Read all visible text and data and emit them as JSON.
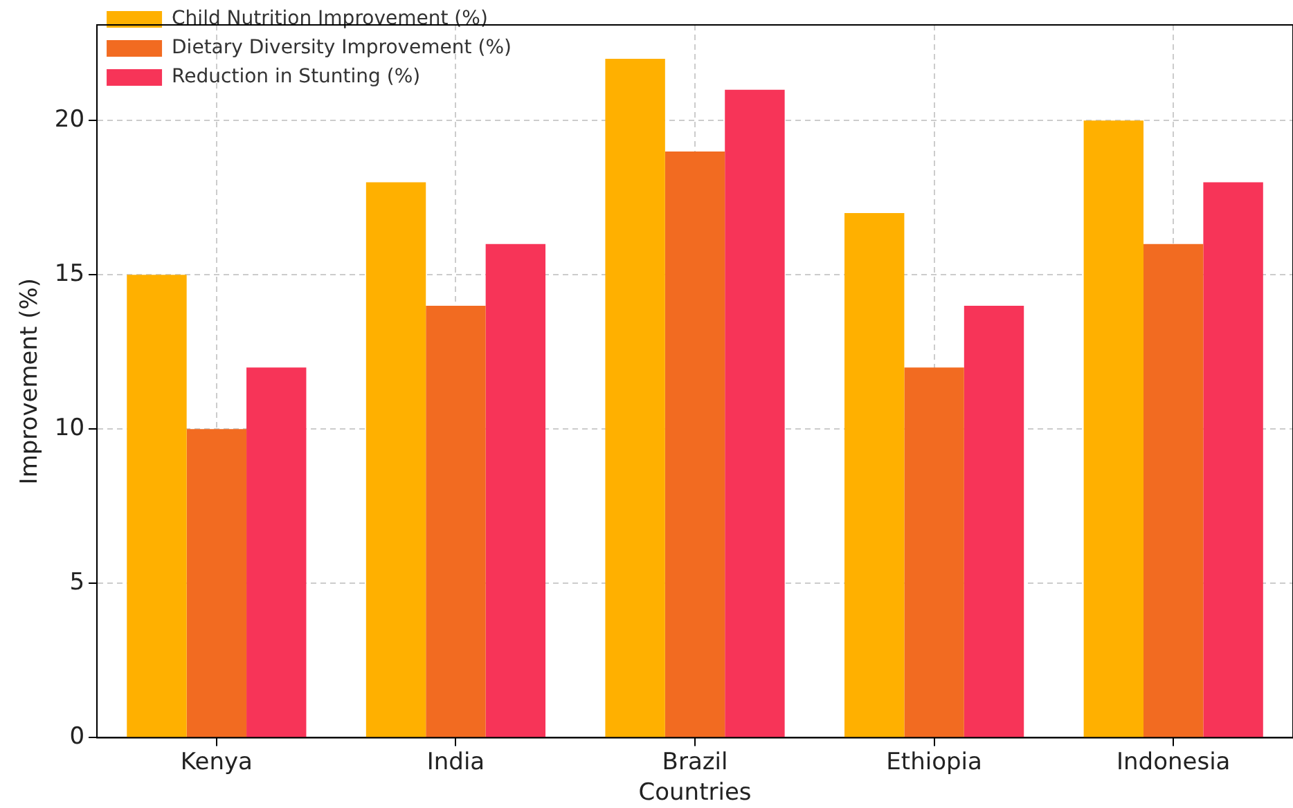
{
  "chart_data": {
    "type": "bar",
    "xlabel": "Countries",
    "ylabel": "Improvement (%)",
    "categories": [
      "Kenya",
      "India",
      "Brazil",
      "Ethiopia",
      "Indonesia"
    ],
    "series": [
      {
        "name": "Child Nutrition Improvement (%)",
        "color": "#ffb000",
        "values": [
          15,
          18,
          22,
          17,
          20
        ]
      },
      {
        "name": "Dietary Diversity Improvement (%)",
        "color": "#f26b21",
        "values": [
          10,
          14,
          19,
          12,
          16
        ]
      },
      {
        "name": "Reduction in Stunting (%)",
        "color": "#f73458",
        "values": [
          12,
          16,
          21,
          14,
          18
        ]
      }
    ],
    "ylim": [
      0,
      23.1
    ],
    "yticks": [
      0,
      5,
      10,
      15,
      20
    ],
    "grid": true,
    "legend": "top left"
  }
}
